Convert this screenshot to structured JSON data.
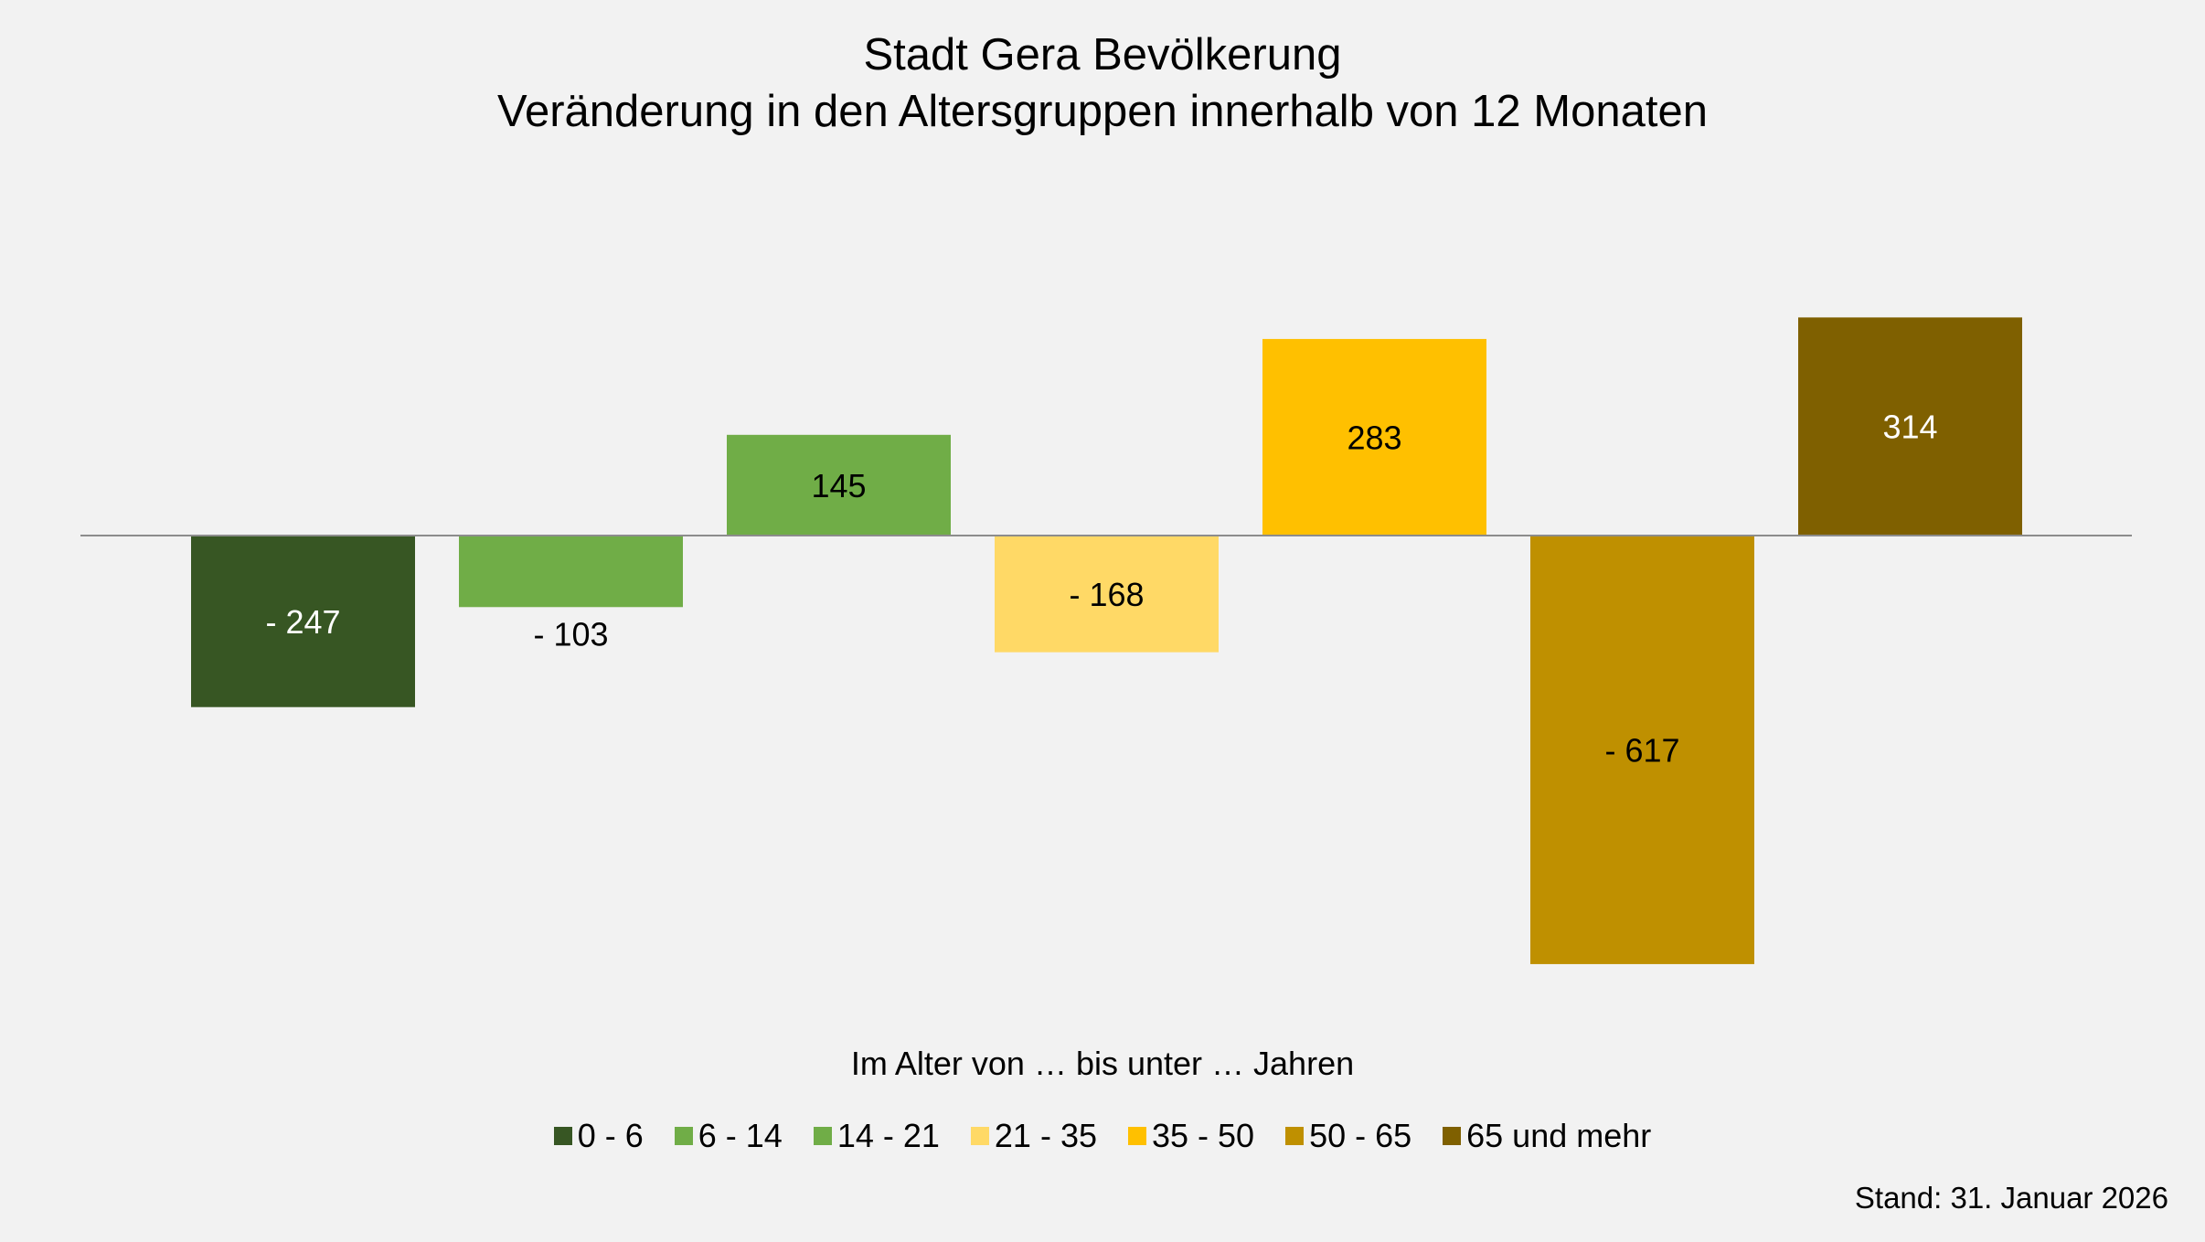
{
  "chart_data": {
    "type": "bar",
    "title": "Stadt Gera Bevölkerung",
    "subtitle": "Veränderung in den Altersgruppen innerhalb von 12 Monaten",
    "xlabel": "Im Alter von … bis unter … Jahren",
    "ylabel": "",
    "categories": [
      "0 - 6",
      "6 - 14",
      "14 - 21",
      "21 - 35",
      "35 - 50",
      "50 - 65",
      "65 und mehr"
    ],
    "values": [
      -247,
      -103,
      145,
      -168,
      283,
      -617,
      314
    ],
    "data_labels": [
      "- 247",
      "- 103",
      "145",
      "- 168",
      "283",
      "- 617",
      "314"
    ],
    "colors": [
      "#375623",
      "#70ad47",
      "#70ad47",
      "#ffd966",
      "#ffc000",
      "#bf9000",
      "#7f6000"
    ],
    "label_colors": [
      "#ffffff",
      "#000000",
      "#000000",
      "#000000",
      "#000000",
      "#000000",
      "#ffffff"
    ],
    "ylim": [
      -700,
      430
    ],
    "grid": false,
    "legend_position": "bottom",
    "footnote": "Stand: 31. Januar 2026"
  }
}
